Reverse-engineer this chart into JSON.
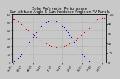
{
  "title": "Solar PV/Inverter Performance  Sun Altitude Angle & Sun Incidence Angle on PV Panels",
  "times": [
    "05:45",
    "06:00",
    "06:15",
    "06:30",
    "06:45",
    "07:00",
    "07:15",
    "07:30",
    "07:45",
    "08:00",
    "08:15",
    "08:30",
    "08:45",
    "09:00",
    "09:15",
    "09:30",
    "09:45",
    "10:00",
    "10:15",
    "10:30",
    "10:45",
    "11:00",
    "11:15",
    "11:30",
    "11:45",
    "12:00",
    "12:15",
    "12:30",
    "12:45",
    "13:00",
    "13:15",
    "13:30",
    "13:45",
    "14:00",
    "14:15",
    "14:30",
    "14:45",
    "15:00",
    "15:15",
    "15:30",
    "15:45",
    "16:00",
    "16:15",
    "16:30",
    "16:45",
    "17:00",
    "17:15",
    "17:30",
    "17:45",
    "18:00",
    "18:15",
    "18:30",
    "18:45",
    "19:00",
    "19:15",
    "19:30",
    "19:45"
  ],
  "altitude": [
    0,
    1,
    3,
    5,
    7,
    10,
    13,
    16,
    19,
    22,
    25,
    28,
    31,
    34,
    37,
    40,
    43,
    45,
    47,
    49,
    50,
    51,
    52,
    52,
    52,
    52,
    51,
    50,
    49,
    47,
    45,
    43,
    40,
    37,
    34,
    31,
    28,
    25,
    22,
    19,
    16,
    13,
    10,
    7,
    5,
    3,
    1,
    0,
    0,
    0,
    0,
    0,
    0,
    0,
    0,
    0,
    0
  ],
  "incidence": [
    90,
    89,
    87,
    85,
    82,
    79,
    76,
    73,
    70,
    67,
    64,
    61,
    58,
    55,
    52,
    49,
    47,
    45,
    43,
    41,
    39,
    37,
    35,
    34,
    33,
    32,
    31,
    31,
    31,
    32,
    33,
    34,
    35,
    37,
    39,
    41,
    43,
    45,
    47,
    50,
    53,
    56,
    59,
    62,
    65,
    68,
    71,
    74,
    78,
    82,
    86,
    89,
    91,
    92,
    92,
    92,
    92
  ],
  "ylim_left": [
    0,
    60
  ],
  "ylim_right": [
    0,
    100
  ],
  "yticks_left": [
    0,
    10,
    20,
    30,
    40,
    50,
    60
  ],
  "yticks_right": [
    0,
    20,
    40,
    60,
    80,
    100
  ],
  "xtick_step": 6,
  "blue_color": "#0000dd",
  "red_color": "#dd0000",
  "bg_color": "#c8c8c8",
  "grid_color": "#909090",
  "title_fontsize": 3.8,
  "tick_fontsize": 2.8,
  "marker_size": 0.8
}
